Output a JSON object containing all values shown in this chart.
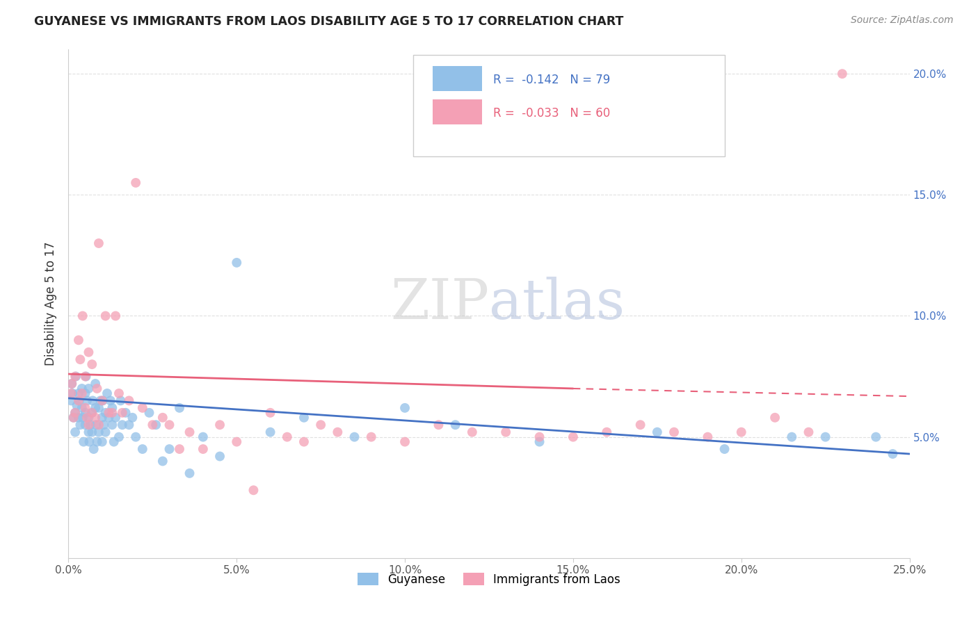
{
  "title": "GUYANESE VS IMMIGRANTS FROM LAOS DISABILITY AGE 5 TO 17 CORRELATION CHART",
  "source": "Source: ZipAtlas.com",
  "ylabel": "Disability Age 5 to 17",
  "x_min": 0.0,
  "x_max": 0.25,
  "y_min": 0.0,
  "y_max": 0.21,
  "guyanese_color": "#92C0E8",
  "laos_color": "#F4A0B5",
  "trend_guyanese_color": "#4472C4",
  "trend_laos_color": "#E8607A",
  "watermark": "ZIPatlas",
  "watermark_color": "#D0D8E8",
  "background_color": "#FFFFFF",
  "grid_color": "#E0E0E0",
  "guyanese_x": [
    0.0008,
    0.001,
    0.0012,
    0.0015,
    0.002,
    0.002,
    0.0022,
    0.0025,
    0.003,
    0.003,
    0.0032,
    0.0035,
    0.004,
    0.004,
    0.0042,
    0.0045,
    0.005,
    0.005,
    0.005,
    0.0052,
    0.0055,
    0.006,
    0.006,
    0.006,
    0.0062,
    0.0065,
    0.007,
    0.007,
    0.0072,
    0.0075,
    0.008,
    0.008,
    0.0082,
    0.0085,
    0.009,
    0.009,
    0.0095,
    0.01,
    0.01,
    0.0102,
    0.0105,
    0.011,
    0.011,
    0.0115,
    0.012,
    0.0125,
    0.013,
    0.013,
    0.0135,
    0.014,
    0.015,
    0.0155,
    0.016,
    0.017,
    0.018,
    0.019,
    0.02,
    0.022,
    0.024,
    0.026,
    0.028,
    0.03,
    0.033,
    0.036,
    0.04,
    0.045,
    0.05,
    0.06,
    0.07,
    0.085,
    0.1,
    0.115,
    0.14,
    0.175,
    0.195,
    0.215,
    0.225,
    0.24,
    0.245
  ],
  "guyanese_y": [
    0.065,
    0.072,
    0.068,
    0.058,
    0.06,
    0.052,
    0.075,
    0.063,
    0.068,
    0.058,
    0.065,
    0.055,
    0.062,
    0.07,
    0.058,
    0.048,
    0.06,
    0.068,
    0.055,
    0.075,
    0.065,
    0.058,
    0.052,
    0.07,
    0.048,
    0.055,
    0.06,
    0.052,
    0.065,
    0.045,
    0.062,
    0.072,
    0.055,
    0.048,
    0.062,
    0.052,
    0.065,
    0.058,
    0.048,
    0.065,
    0.055,
    0.06,
    0.052,
    0.068,
    0.058,
    0.065,
    0.055,
    0.062,
    0.048,
    0.058,
    0.05,
    0.065,
    0.055,
    0.06,
    0.055,
    0.058,
    0.05,
    0.045,
    0.06,
    0.055,
    0.04,
    0.045,
    0.062,
    0.035,
    0.05,
    0.042,
    0.122,
    0.052,
    0.058,
    0.05,
    0.062,
    0.055,
    0.048,
    0.052,
    0.045,
    0.05,
    0.05,
    0.05,
    0.043
  ],
  "laos_x": [
    0.0008,
    0.001,
    0.0015,
    0.002,
    0.002,
    0.003,
    0.003,
    0.0035,
    0.004,
    0.0042,
    0.005,
    0.005,
    0.0055,
    0.006,
    0.006,
    0.007,
    0.007,
    0.008,
    0.0085,
    0.009,
    0.009,
    0.01,
    0.011,
    0.012,
    0.013,
    0.014,
    0.015,
    0.016,
    0.018,
    0.02,
    0.022,
    0.025,
    0.028,
    0.03,
    0.033,
    0.036,
    0.04,
    0.045,
    0.05,
    0.055,
    0.06,
    0.065,
    0.07,
    0.075,
    0.08,
    0.09,
    0.1,
    0.11,
    0.12,
    0.13,
    0.14,
    0.15,
    0.16,
    0.17,
    0.18,
    0.19,
    0.2,
    0.21,
    0.22,
    0.23
  ],
  "laos_y": [
    0.068,
    0.072,
    0.058,
    0.075,
    0.06,
    0.09,
    0.065,
    0.082,
    0.068,
    0.1,
    0.062,
    0.075,
    0.058,
    0.055,
    0.085,
    0.06,
    0.08,
    0.058,
    0.07,
    0.055,
    0.13,
    0.065,
    0.1,
    0.06,
    0.06,
    0.1,
    0.068,
    0.06,
    0.065,
    0.155,
    0.062,
    0.055,
    0.058,
    0.055,
    0.045,
    0.052,
    0.045,
    0.055,
    0.048,
    0.028,
    0.06,
    0.05,
    0.048,
    0.055,
    0.052,
    0.05,
    0.048,
    0.055,
    0.052,
    0.052,
    0.05,
    0.05,
    0.052,
    0.055,
    0.052,
    0.05,
    0.052,
    0.058,
    0.052,
    0.2
  ],
  "trend_guyanese_x0": 0.0,
  "trend_guyanese_x1": 0.25,
  "trend_guyanese_y0": 0.066,
  "trend_guyanese_y1": 0.043,
  "trend_laos_x0": 0.0,
  "trend_laos_x1": 0.15,
  "trend_laos_x1_dash": 0.25,
  "trend_laos_y0": 0.076,
  "trend_laos_y1": 0.07,
  "trend_laos_y1_dash": 0.0668
}
